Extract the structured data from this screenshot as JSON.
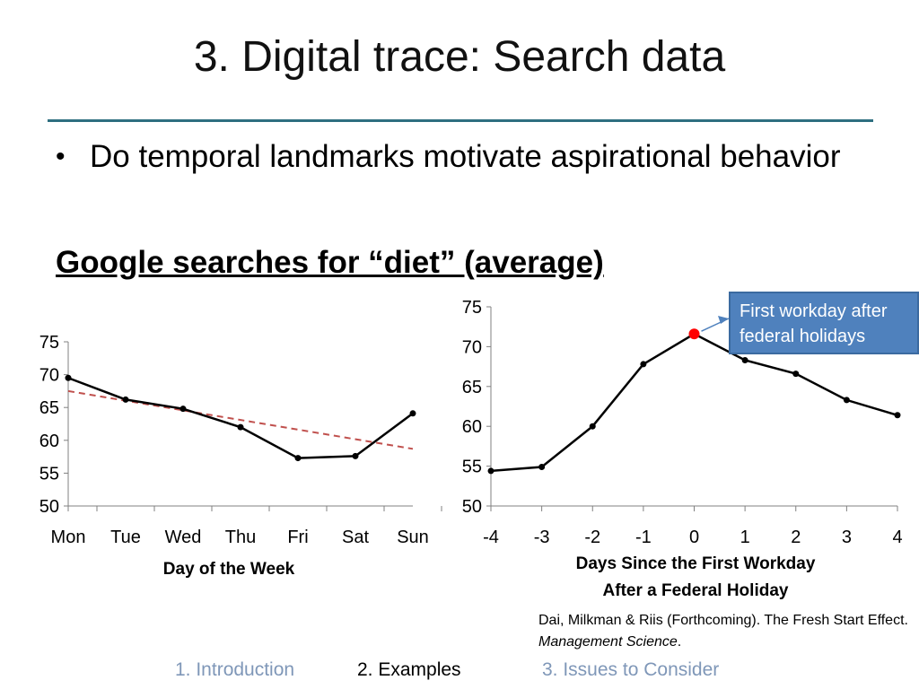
{
  "slide": {
    "title": "3. Digital trace: Search data",
    "bullet": "Do temporal landmarks motivate aspirational behavior",
    "subhead": "Google searches for “diet” (average)",
    "citation_main": "Dai, Milkman & Riis (Forthcoming). The Fresh Start Effect. ",
    "citation_journal": "Management Science",
    "citation_end": ".",
    "callout": "First workday after federal holidays"
  },
  "nav": {
    "items": [
      "1. Introduction",
      "2. Examples",
      "3. Issues to Consider"
    ],
    "active_index": 1
  },
  "colors": {
    "accent_rule": "#2e6f80",
    "callout_fill": "#4f81bd",
    "trend_line": "#c0504d",
    "highlight_point": "#ff0000",
    "nav_inactive": "#7f97b8"
  },
  "chart_data": [
    {
      "type": "line",
      "title": "",
      "xlabel": "Day of the Week",
      "ylabel": "",
      "categories": [
        "Mon",
        "Tue",
        "Wed",
        "Thu",
        "Fri",
        "Sat",
        "Sun"
      ],
      "series": [
        {
          "values": [
            69.5,
            66.2,
            64.8,
            62.0,
            57.3,
            57.6,
            64.1
          ]
        }
      ],
      "trendline": {
        "style": "dashed",
        "start": 67.5,
        "end": 58.7
      },
      "ylim": [
        50,
        75
      ],
      "yticks": [
        50,
        55,
        60,
        65,
        70,
        75
      ],
      "grid": false
    },
    {
      "type": "line",
      "title": "",
      "xlabel": "Days Since the First Workday After a Federal Holiday",
      "xlabel_lines": [
        "Days Since the First Workday",
        "After a Federal Holiday"
      ],
      "ylabel": "",
      "categories": [
        "-4",
        "-3",
        "-2",
        "-1",
        "0",
        "1",
        "2",
        "3",
        "4"
      ],
      "series": [
        {
          "values": [
            54.4,
            54.9,
            60.0,
            67.8,
            71.6,
            68.3,
            66.6,
            63.3,
            61.4
          ]
        }
      ],
      "highlight_index": 4,
      "annotation": "First workday after federal holidays",
      "ylim": [
        50,
        75
      ],
      "yticks": [
        50,
        55,
        60,
        65,
        70,
        75
      ],
      "grid": false
    }
  ]
}
